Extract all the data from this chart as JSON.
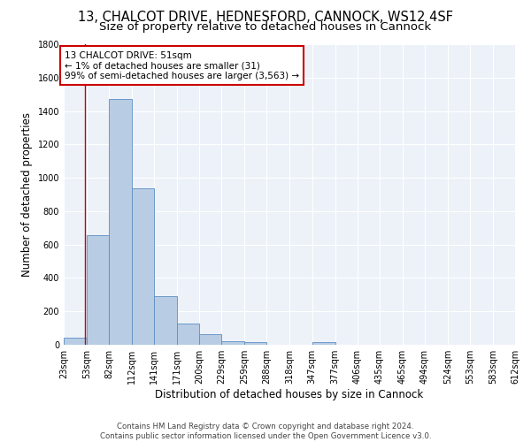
{
  "title_line1": "13, CHALCOT DRIVE, HEDNESFORD, CANNOCK, WS12 4SF",
  "title_line2": "Size of property relative to detached houses in Cannock",
  "xlabel": "Distribution of detached houses by size in Cannock",
  "ylabel": "Number of detached properties",
  "bar_color": "#b8cce4",
  "bar_edge_color": "#5b8ec4",
  "background_color": "#edf2f9",
  "grid_color": "#ffffff",
  "annotation_line1": "13 CHALCOT DRIVE: 51sqm",
  "annotation_line2": "← 1% of detached houses are smaller (31)",
  "annotation_line3": "99% of semi-detached houses are larger (3,563) →",
  "annotation_box_color": "#ffffff",
  "annotation_box_edge_color": "#cc0000",
  "vline_x": 51,
  "vline_color": "#cc0000",
  "bin_edges": [
    23,
    53,
    82,
    112,
    141,
    171,
    200,
    229,
    259,
    288,
    318,
    347,
    377,
    406,
    435,
    465,
    494,
    524,
    553,
    583,
    612
  ],
  "bar_heights": [
    40,
    655,
    1470,
    935,
    290,
    125,
    62,
    22,
    15,
    0,
    0,
    14,
    0,
    0,
    0,
    0,
    0,
    0,
    0,
    0
  ],
  "ylim": [
    0,
    1800
  ],
  "yticks": [
    0,
    200,
    400,
    600,
    800,
    1000,
    1200,
    1400,
    1600,
    1800
  ],
  "footer_text": "Contains HM Land Registry data © Crown copyright and database right 2024.\nContains public sector information licensed under the Open Government Licence v3.0.",
  "title1_fontsize": 10.5,
  "title2_fontsize": 9.5,
  "axis_label_fontsize": 8.5,
  "tick_fontsize": 7,
  "annotation_fontsize": 7.5,
  "footer_fontsize": 6.2
}
